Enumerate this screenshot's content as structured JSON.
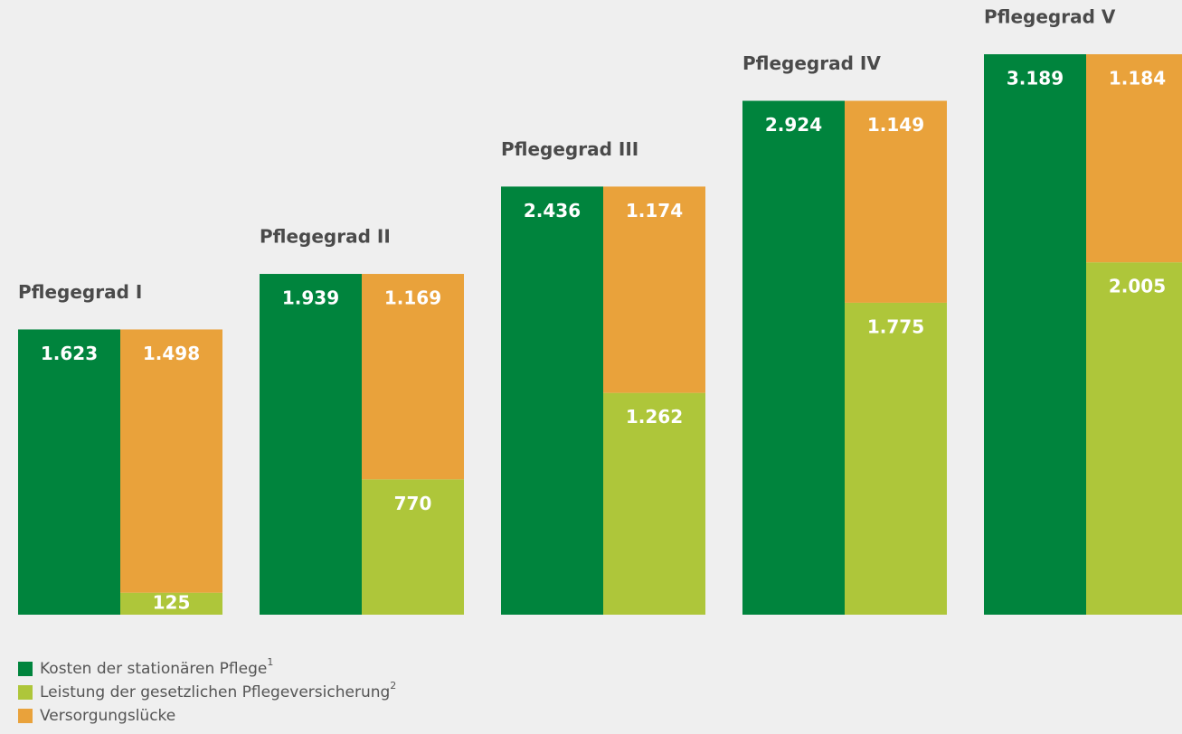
{
  "chart_data": {
    "type": "grouped-stacked-bar",
    "categories": [
      "Pflegegrad I",
      "Pflegegrad II",
      "Pflegegrad III",
      "Pflegegrad IV",
      "Pflegegrad V"
    ],
    "series": [
      {
        "name": "Kosten der stationären Pflege",
        "footnote": "1",
        "color": "#00843d",
        "stack": "a",
        "values": [
          1623,
          1939,
          2436,
          2924,
          3189
        ],
        "value_labels": [
          "1.623",
          "1.939",
          "2.436",
          "2.924",
          "3.189"
        ]
      },
      {
        "name": "Leistung der gesetzlichen Pflegeversicherung",
        "footnote": "2",
        "color": "#aec63a",
        "stack": "b",
        "values": [
          125,
          770,
          1262,
          1775,
          2005
        ],
        "value_labels": [
          "125",
          "770",
          "1.262",
          "1.775",
          "2.005"
        ]
      },
      {
        "name": "Versorgungslücke",
        "color": "#e9a23b",
        "stack": "b",
        "values": [
          1498,
          1169,
          1174,
          1149,
          1184
        ],
        "value_labels": [
          "1.498",
          "1.169",
          "1.174",
          "1.149",
          "1.184"
        ]
      }
    ]
  }
}
